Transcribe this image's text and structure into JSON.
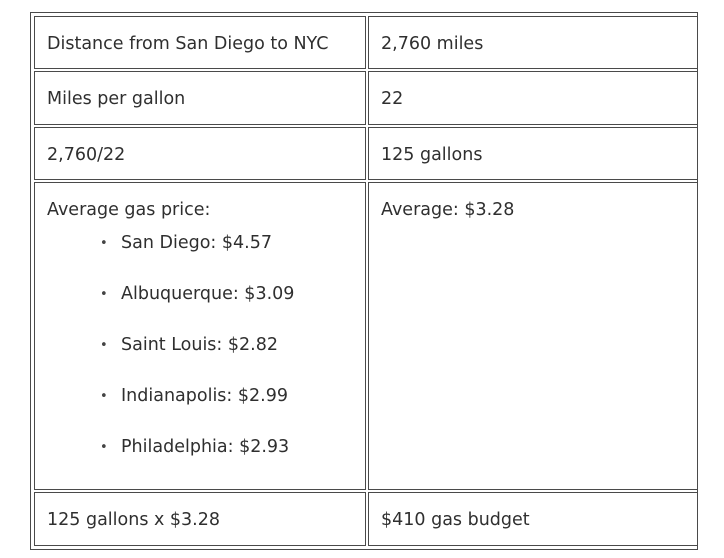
{
  "table": {
    "row1": {
      "left": "Distance from San Diego to NYC",
      "right": "2,760 miles"
    },
    "row2": {
      "left": "Miles per gallon",
      "right": "22"
    },
    "row3": {
      "left": "2,760/22",
      "right": "125 gallons"
    },
    "row4": {
      "left_heading": "Average gas price:",
      "prices": [
        "San Diego: $4.57",
        "Albuquerque: $3.09",
        "Saint Louis: $2.82",
        "Indianapolis: $2.99",
        "Philadelphia: $2.93"
      ],
      "right": "Average: $3.28"
    },
    "row5": {
      "left": "125 gallons x $3.28",
      "right": "$410 gas budget"
    }
  }
}
